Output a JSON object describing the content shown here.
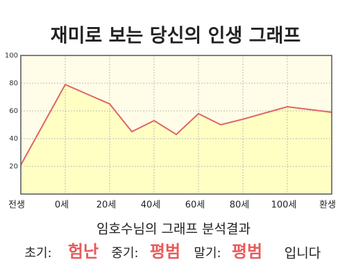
{
  "chart_data": {
    "type": "area",
    "title": "재미로 보는 당신의 인생 그래프",
    "categories": [
      "전생",
      null,
      "0세",
      null,
      "20세",
      null,
      "40세",
      null,
      "60세",
      null,
      "80세",
      null,
      "100세",
      null,
      "환생"
    ],
    "values": [
      21,
      50,
      79,
      72,
      65,
      45,
      53,
      43,
      58,
      50,
      54,
      58.5,
      63,
      61,
      59
    ],
    "color": "#e06464",
    "fill": "#ffffc4",
    "ylim": [
      0,
      100
    ],
    "yticks": [
      20,
      40,
      60,
      80,
      100
    ],
    "grid": true
  },
  "analysis": {
    "heading": "임호수님의 그래프 분석결과",
    "items": [
      {
        "label": "초기:",
        "value": "험난"
      },
      {
        "label": "중기:",
        "value": "평범"
      },
      {
        "label": "말기:",
        "value": "평범"
      }
    ],
    "ending": "입니다"
  }
}
